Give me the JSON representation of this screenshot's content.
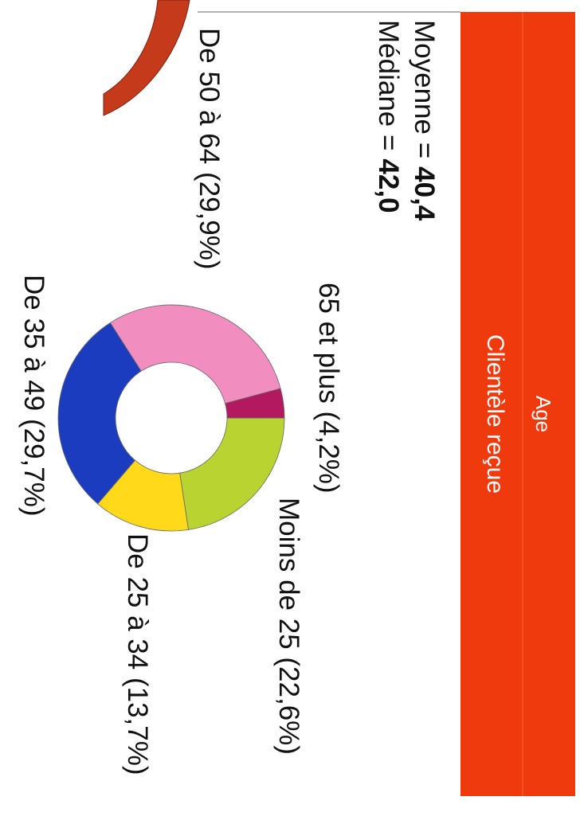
{
  "chart_data": {
    "type": "pie",
    "title": "Clientèle reçue",
    "subtitle": "Age",
    "stats": [
      {
        "label": "Moyenne =",
        "value": "40,4"
      },
      {
        "label": "Médiane =",
        "value": "42,0"
      }
    ],
    "categories": [
      "Moins de 25 (22,6%)",
      "De 25 à 34 (13,7%)",
      "De 35 à 49 (29,7%)",
      "De 50 à 64 (29,9%)",
      "65 et plus (4,2%)"
    ],
    "values": [
      22.6,
      13.7,
      29.7,
      29.9,
      4.2
    ],
    "colors": [
      "#b9d430",
      "#ffd91a",
      "#1c3cc0",
      "#f28dc0",
      "#b3195e"
    ],
    "donut": true
  }
}
